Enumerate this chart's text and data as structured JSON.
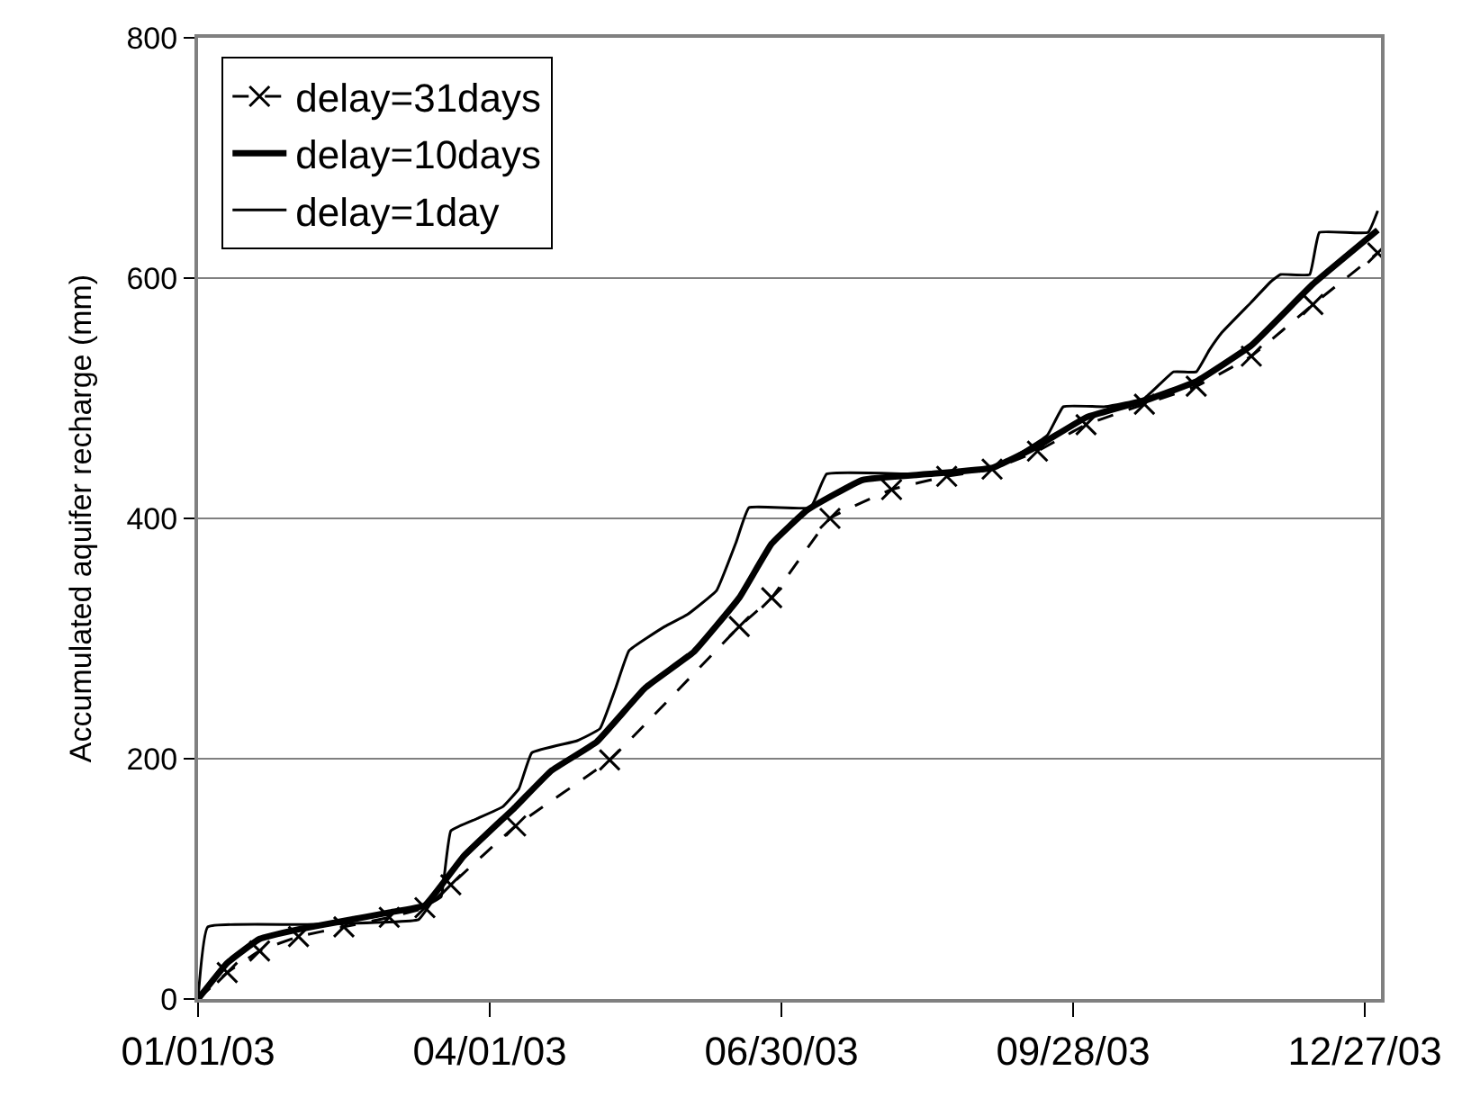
{
  "chart_data": {
    "type": "line",
    "ylabel": "Accumulated aquifer recharge (mm)",
    "xlim": [
      "2003-01-01",
      "2004-01-01"
    ],
    "ylim": [
      0,
      800
    ],
    "yticks": [
      0,
      200,
      400,
      600,
      800
    ],
    "xticks": [
      {
        "value": "2003-01-01",
        "label": "01/01/03"
      },
      {
        "value": "2003-04-01",
        "label": "04/01/03"
      },
      {
        "value": "2003-06-30",
        "label": "06/30/03"
      },
      {
        "value": "2003-09-28",
        "label": "09/28/03"
      },
      {
        "value": "2003-12-27",
        "label": "12/27/03"
      }
    ],
    "grid": "y",
    "legend": "top left",
    "series": [
      {
        "name": "delay=31days",
        "color": "#000000",
        "marker": "cross",
        "line_style": "dashed",
        "x": [
          "2003-01-01",
          "2003-01-10",
          "2003-01-20",
          "2003-02-01",
          "2003-02-15",
          "2003-03-01",
          "2003-03-12",
          "2003-03-20",
          "2003-04-09",
          "2003-05-08",
          "2003-06-17",
          "2003-06-27",
          "2003-07-15",
          "2003-08-03",
          "2003-08-20",
          "2003-09-03",
          "2003-09-17",
          "2003-10-02",
          "2003-10-20",
          "2003-11-05",
          "2003-11-22",
          "2003-12-11",
          "2003-12-31"
        ],
        "values": [
          0,
          22,
          40,
          52,
          60,
          68,
          76,
          95,
          144,
          199,
          310,
          334,
          400,
          424,
          435,
          441,
          456,
          478,
          495,
          510,
          535,
          578,
          621
        ]
      },
      {
        "name": "delay=10days",
        "color": "#000000",
        "marker": "none",
        "line_style": "solid",
        "x": [
          "2003-01-01",
          "2003-01-10",
          "2003-01-20",
          "2003-02-01",
          "2003-02-15",
          "2003-03-01",
          "2003-03-12",
          "2003-03-24",
          "2003-04-09",
          "2003-04-20",
          "2003-05-04",
          "2003-05-19",
          "2003-06-03",
          "2003-06-17",
          "2003-06-27",
          "2003-07-08",
          "2003-07-25",
          "2003-08-15",
          "2003-09-03",
          "2003-09-17",
          "2003-10-02",
          "2003-10-20",
          "2003-11-05",
          "2003-11-22",
          "2003-12-11",
          "2003-12-31"
        ],
        "values": [
          0,
          30,
          50,
          58,
          65,
          72,
          78,
          119,
          160,
          190,
          214,
          259,
          289,
          334,
          379,
          407,
          432,
          437,
          442,
          460,
          484,
          498,
          514,
          544,
          595,
          640
        ]
      },
      {
        "name": "delay=1day",
        "color": "#000000",
        "marker": "none",
        "line_style": "solid",
        "x": [
          "2003-01-01",
          "2003-01-04",
          "2003-02-01",
          "2003-03-10",
          "2003-03-14",
          "2003-03-17",
          "2003-03-20",
          "2003-03-28",
          "2003-04-05",
          "2003-04-10",
          "2003-04-14",
          "2003-04-28",
          "2003-05-05",
          "2003-05-10",
          "2003-05-14",
          "2003-05-25",
          "2003-06-01",
          "2003-06-10",
          "2003-06-16",
          "2003-06-20",
          "2003-07-09",
          "2003-07-14",
          "2003-08-10",
          "2003-09-03",
          "2003-09-20",
          "2003-09-25",
          "2003-10-08",
          "2003-10-20",
          "2003-10-29",
          "2003-11-05",
          "2003-11-09",
          "2003-11-13",
          "2003-11-22",
          "2003-11-28",
          "2003-12-01",
          "2003-12-10",
          "2003-12-13",
          "2003-12-28",
          "2003-12-31"
        ],
        "values": [
          0,
          60,
          62,
          66,
          80,
          85,
          140,
          150,
          160,
          175,
          205,
          215,
          225,
          260,
          290,
          310,
          320,
          340,
          380,
          409,
          409,
          437,
          437,
          441,
          469,
          493,
          493,
          500,
          522,
          522,
          540,
          555,
          580,
          597,
          603,
          603,
          638,
          638,
          656
        ]
      }
    ]
  }
}
